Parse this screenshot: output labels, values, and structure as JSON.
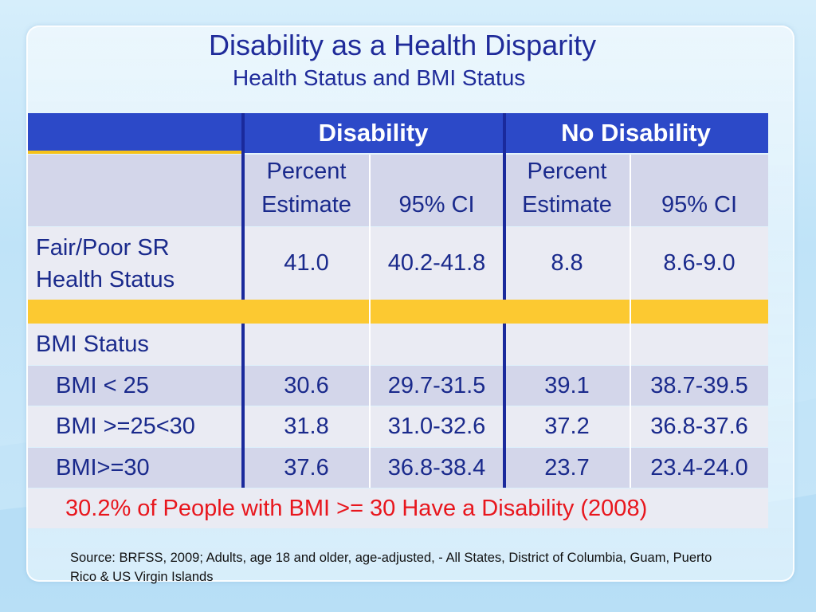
{
  "title": "Disability as a Health Disparity",
  "subtitle": "Health Status and BMI Status",
  "table": {
    "group_headers": [
      "Disability",
      "No Disability"
    ],
    "sub_headers": [
      {
        "line1": "Percent",
        "line2": "Estimate"
      },
      {
        "line1": "",
        "line2": "95% CI"
      },
      {
        "line1": "Percent",
        "line2": "Estimate"
      },
      {
        "line1": "",
        "line2": "95% CI"
      }
    ],
    "rows": {
      "fair_poor": {
        "label_line1": "Fair/Poor SR",
        "label_line2": "Health Status",
        "values": [
          "41.0",
          "40.2-41.8",
          "8.8",
          "8.6-9.0"
        ]
      },
      "bmi_status": {
        "label": "BMI Status"
      },
      "bmi_lt25": {
        "label": "BMI < 25",
        "values": [
          "30.6",
          "29.7-31.5",
          "39.1",
          "38.7-39.5"
        ]
      },
      "bmi_25_30": {
        "label": "BMI >=25<30",
        "values": [
          "31.8",
          "31.0-32.6",
          "37.2",
          "36.8-37.6"
        ]
      },
      "bmi_ge30": {
        "label": "BMI>=30",
        "values": [
          "37.6",
          "36.8-38.4",
          "23.7",
          "23.4-24.0"
        ]
      }
    },
    "note": "30.2% of People with BMI >= 30 Have a Disability (2008)"
  },
  "source": "Source:  BRFSS, 2009; Adults, age 18 and older, age-adjusted, - All States, District of Columbia, Guam, Puerto Rico & US Virgin Islands",
  "colors": {
    "header_blue": "#2c49c8",
    "accent_gold": "#fcc931",
    "note_red": "#e8161d",
    "text_navy": "#1a2a8c"
  }
}
